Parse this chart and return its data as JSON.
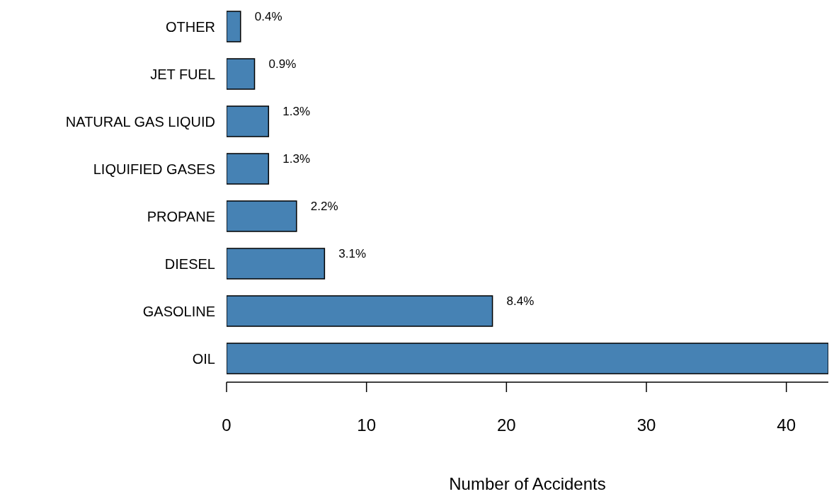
{
  "chart_data": {
    "type": "bar",
    "orientation": "horizontal",
    "xlabel": "Number of Accidents",
    "categories": [
      "OTHER",
      "JET FUEL",
      "NATURAL GAS LIQUID",
      "LIQUIFIED GASES",
      "PROPANE",
      "DIESEL",
      "GASOLINE",
      "OIL"
    ],
    "values": [
      1,
      2,
      3,
      3,
      5,
      7,
      19,
      43
    ],
    "annotations": [
      {
        "text": "0.4%",
        "x": 1,
        "y": "OTHER"
      },
      {
        "text": "0.9%",
        "x": 2,
        "y": "JET FUEL"
      },
      {
        "text": "1.3%",
        "x": 3,
        "y": "NATURAL GAS LIQUID"
      },
      {
        "text": "1.3%",
        "x": 3,
        "y": "LIQUIFIED GASES"
      },
      {
        "text": "2.2%",
        "x": 5,
        "y": "PROPANE"
      },
      {
        "text": "3.1%",
        "x": 7,
        "y": "DIESEL"
      },
      {
        "text": "8.4%",
        "x": 19,
        "y": "GASOLINE"
      }
    ],
    "color": "#4682b4",
    "xlim": [
      0,
      43
    ],
    "xticks": [
      0,
      10,
      20,
      30,
      40
    ]
  }
}
